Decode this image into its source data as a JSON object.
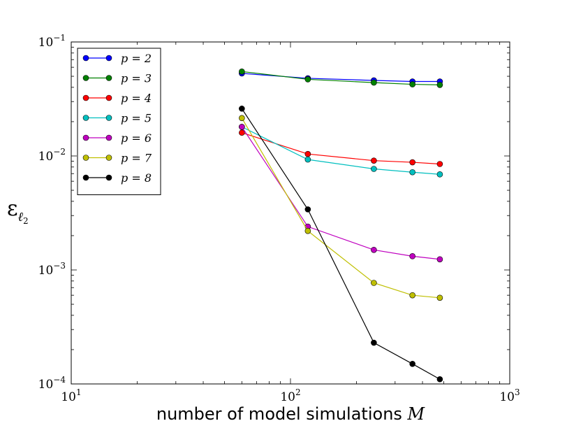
{
  "chart_data": {
    "type": "line",
    "title": "",
    "xscale": "log",
    "yscale": "log",
    "xlim": [
      10,
      1000
    ],
    "ylim": [
      0.0001,
      0.1
    ],
    "xlabel_text": "number of model simulations ",
    "xlabel_symbol": "M",
    "ylabel_symbol": "ε",
    "ylabel_subscript": "ℓ",
    "ylabel_subsubscript": "2",
    "grid": false,
    "legend_position": "upper-left",
    "x_ticks": [
      {
        "base": "10",
        "exp": "1"
      },
      {
        "base": "10",
        "exp": "2"
      },
      {
        "base": "10",
        "exp": "3"
      }
    ],
    "y_ticks": [
      {
        "base": "10",
        "exp": "−4"
      },
      {
        "base": "10",
        "exp": "−3"
      },
      {
        "base": "10",
        "exp": "−2"
      },
      {
        "base": "10",
        "exp": "−1"
      }
    ],
    "x": [
      60,
      120,
      240,
      360,
      480
    ],
    "series": [
      {
        "name": "p = 2",
        "color": "#0000ff",
        "values": [
          0.053,
          0.048,
          0.046,
          0.045,
          0.045
        ]
      },
      {
        "name": "p = 3",
        "color": "#008000",
        "values": [
          0.055,
          0.047,
          0.044,
          0.0425,
          0.042
        ]
      },
      {
        "name": "p = 4",
        "color": "#ff0000",
        "values": [
          0.016,
          0.0104,
          0.0091,
          0.0088,
          0.0085
        ]
      },
      {
        "name": "p = 5",
        "color": "#00bfbf",
        "values": [
          0.018,
          0.0093,
          0.0077,
          0.0072,
          0.0069
        ]
      },
      {
        "name": "p = 6",
        "color": "#bf00bf",
        "values": [
          0.018,
          0.0024,
          0.0015,
          0.00132,
          0.00124
        ]
      },
      {
        "name": "p = 7",
        "color": "#bfbf00",
        "values": [
          0.0215,
          0.0022,
          0.00077,
          0.0006,
          0.00057
        ]
      },
      {
        "name": "p = 8",
        "color": "#000000",
        "values": [
          0.026,
          0.0034,
          0.00023,
          0.00015,
          0.00011
        ]
      }
    ]
  }
}
